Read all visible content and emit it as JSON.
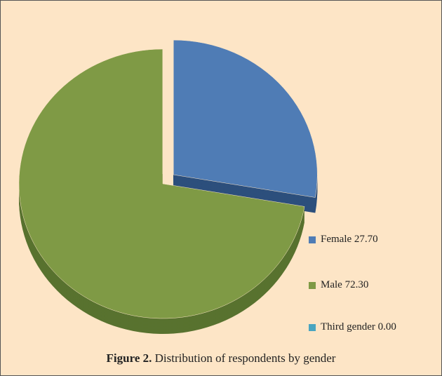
{
  "chart_data": {
    "type": "pie",
    "figure_label": "Figure 2.",
    "title": "Distribution of respondents by gender",
    "categories": [
      "Female",
      "Male",
      "Third gender"
    ],
    "values": [
      27.7,
      72.3,
      0
    ],
    "value_labels": [
      "27.70",
      "72.30",
      "0.00"
    ],
    "colors": [
      "#4f7cb5",
      "#7f9a45",
      "#4aa5c0"
    ],
    "side_colors": [
      "#2c4f7c",
      "#58722f",
      "#2d7f96"
    ],
    "legend": "right"
  }
}
